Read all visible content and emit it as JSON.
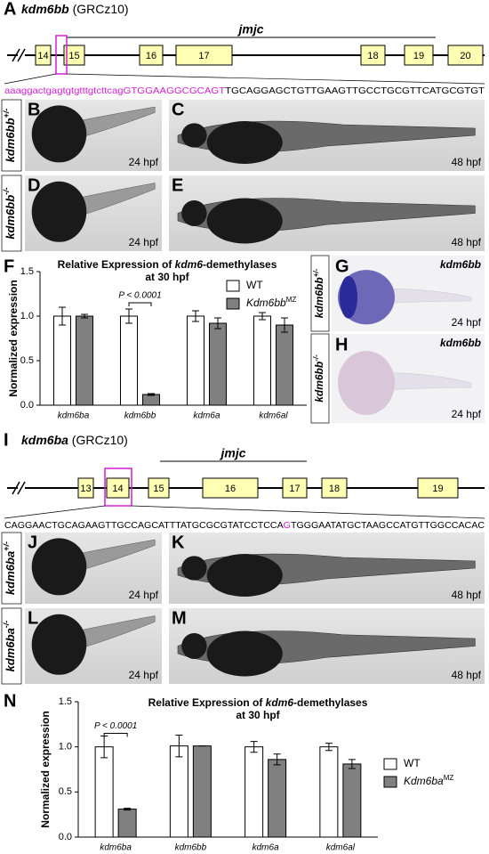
{
  "gene_a": {
    "label": "A",
    "title_italic": "kdm6bb",
    "title_rest": " (GRCz10)",
    "domain": "jmjc",
    "exons": [
      "14",
      "15",
      "16",
      "17",
      "18",
      "19",
      "20"
    ],
    "seq_highlight": "aaaggactgagtgtgtttgtcttcagGTGGAAGGCGCAGT",
    "seq_rest": "TGCAGGAGCTGTTGAAGTTGCCTGCGTTCATGCGTGT"
  },
  "images_a": [
    {
      "label": "B",
      "time": "24 hpf"
    },
    {
      "label": "C",
      "time": "48 hpf"
    },
    {
      "label": "D",
      "time": "24 hpf"
    },
    {
      "label": "E",
      "time": "48 hpf"
    }
  ],
  "genotypes_a": [
    {
      "gene": "kdm6bb",
      "sup": "+/-"
    },
    {
      "gene": "kdm6bb",
      "sup": "-/-"
    }
  ],
  "insitu": [
    {
      "label": "G",
      "probe": "kdm6bb",
      "time": "24 hpf",
      "genotype": "kdm6bb",
      "sup": "+/-"
    },
    {
      "label": "H",
      "probe": "kdm6bb",
      "time": "24 hpf",
      "genotype": "kdm6bb",
      "sup": "-/-"
    }
  ],
  "gene_i": {
    "label": "I",
    "title_italic": "kdm6ba",
    "title_rest": " (GRCz10)",
    "domain": "jmjc",
    "exons": [
      "13",
      "14",
      "15",
      "16",
      "17",
      "18",
      "19"
    ],
    "seq_before": "CAGGAACTGCAGAAGTTGCCAGCATTTATGCGCGTATCCTCCA",
    "seq_highlight": "G",
    "seq_after": "TGGGAATATGCTAAGCCATGTTGGCCACAC"
  },
  "images_i": [
    {
      "label": "J",
      "time": "24 hpf"
    },
    {
      "label": "K",
      "time": "48 hpf"
    },
    {
      "label": "L",
      "time": "24 hpf"
    },
    {
      "label": "M",
      "time": "48 hpf"
    }
  ],
  "genotypes_i": [
    {
      "gene": "kdm6ba",
      "sup": "+/-"
    },
    {
      "gene": "kdm6ba",
      "sup": "-/-"
    }
  ],
  "chart_data": [
    {
      "type": "bar",
      "panel": "F",
      "title": {
        "before": "Relative Expression of ",
        "italic": "kdm6",
        "after": "-demethylases",
        "line2": "at 30 hpf"
      },
      "y_label": "Normalized expression",
      "annotation": "P < 0.0001",
      "categories": [
        "kdm6ba",
        "kdm6bb",
        "kdm6a",
        "kdm6al"
      ],
      "series": [
        {
          "name": "WT",
          "color": "#ffffff",
          "values": [
            1.0,
            1.0,
            1.0,
            1.0
          ],
          "errors": [
            0.1,
            0.08,
            0.06,
            0.04
          ]
        },
        {
          "name": "Kdm6bb",
          "name_sup": "MZ",
          "color": "#808080",
          "values": [
            1.0,
            0.12,
            0.92,
            0.9
          ],
          "errors": [
            0.02,
            0.01,
            0.06,
            0.08
          ]
        }
      ],
      "ylim": [
        0,
        1.5
      ],
      "yticks": [
        {
          "value": 0,
          "label": "0.0"
        },
        {
          "value": 0.5,
          "label": "0.5"
        },
        {
          "value": 1,
          "label": "1.0"
        },
        {
          "value": 1.5,
          "label": "1.5"
        }
      ],
      "grid": false,
      "legend": "upper right"
    },
    {
      "type": "bar",
      "panel": "N",
      "title": {
        "before": "Relative Expression of ",
        "italic": "kdm6",
        "after": "-demethylases",
        "line2": "at 30 hpf"
      },
      "y_label": "Normalized expression",
      "annotation": "P < 0.0001",
      "categories": [
        "kdm6ba",
        "kdm6bb",
        "kdm6a",
        "kdm6al"
      ],
      "series": [
        {
          "name": "WT",
          "color": "#ffffff",
          "values": [
            1.0,
            1.01,
            1.0,
            1.0
          ],
          "errors": [
            0.12,
            0.12,
            0.06,
            0.04
          ]
        },
        {
          "name": "Kdm6ba",
          "name_sup": "MZ",
          "color": "#808080",
          "values": [
            0.31,
            1.01,
            0.86,
            0.81
          ],
          "errors": [
            0.01,
            0.0,
            0.06,
            0.05
          ]
        }
      ],
      "ylim": [
        0,
        1.5
      ],
      "yticks": [
        {
          "value": 0,
          "label": "0.0"
        },
        {
          "value": 0.5,
          "label": "0.5"
        },
        {
          "value": 1,
          "label": "1.0"
        },
        {
          "value": 1.5,
          "label": "1.5"
        }
      ],
      "grid": false,
      "legend": "right"
    }
  ]
}
